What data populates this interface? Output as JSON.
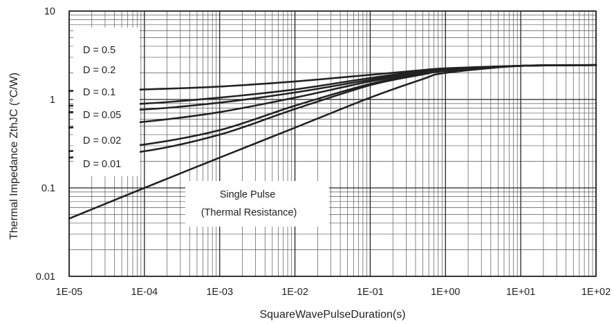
{
  "chart_data": {
    "type": "line",
    "title": "",
    "xlabel": "SquareWavePulseDuration(s)",
    "ylabel": "Thermal Impedance ZthJC (°C/W)",
    "x_scale": "log",
    "y_scale": "log",
    "xlim": [
      1e-05,
      100
    ],
    "ylim": [
      0.01,
      10
    ],
    "grid": true,
    "x_ticks": [
      1e-05,
      0.0001,
      0.001,
      0.01,
      0.1,
      1,
      10,
      100
    ],
    "x_tick_labels": [
      "1E-05",
      "1E-04",
      "1E-03",
      "1E-02",
      "1E-01",
      "1E+00",
      "1E+01",
      "1E+02"
    ],
    "y_ticks": [
      0.01,
      0.1,
      1,
      10
    ],
    "y_tick_labels": [
      "0.01",
      "0.1",
      "1",
      "10"
    ],
    "series": [
      {
        "name": "D = 0.5",
        "x": [
          1e-05,
          0.0001,
          0.001,
          0.01,
          0.1,
          0.5,
          1,
          10,
          100
        ],
        "y": [
          1.25,
          1.3,
          1.4,
          1.6,
          1.9,
          2.15,
          2.25,
          2.4,
          2.45
        ]
      },
      {
        "name": "D = 0.2",
        "x": [
          1e-05,
          0.0001,
          0.001,
          0.01,
          0.1,
          0.5,
          1,
          10,
          100
        ],
        "y": [
          0.85,
          0.9,
          1.05,
          1.3,
          1.75,
          2.1,
          2.2,
          2.4,
          2.45
        ]
      },
      {
        "name": "D = 0.1",
        "x": [
          1e-05,
          0.0001,
          0.001,
          0.01,
          0.1,
          0.5,
          1,
          10,
          100
        ],
        "y": [
          0.72,
          0.77,
          0.92,
          1.2,
          1.67,
          2.05,
          2.18,
          2.4,
          2.45
        ]
      },
      {
        "name": "D = 0.05",
        "x": [
          1e-05,
          0.0001,
          0.001,
          0.01,
          0.1,
          0.5,
          1,
          10,
          100
        ],
        "y": [
          0.48,
          0.56,
          0.72,
          1.05,
          1.6,
          2.0,
          2.15,
          2.4,
          2.45
        ]
      },
      {
        "name": "D = 0.02",
        "x": [
          1e-05,
          0.0001,
          0.001,
          0.01,
          0.1,
          0.5,
          1,
          10,
          100
        ],
        "y": [
          0.26,
          0.31,
          0.45,
          0.85,
          1.5,
          1.95,
          2.12,
          2.4,
          2.45
        ]
      },
      {
        "name": "D = 0.01",
        "x": [
          1e-05,
          0.0001,
          0.001,
          0.01,
          0.1,
          0.5,
          1,
          10,
          100
        ],
        "y": [
          0.22,
          0.26,
          0.4,
          0.78,
          1.45,
          1.92,
          2.1,
          2.4,
          2.45
        ]
      },
      {
        "name": "Single Pulse",
        "x": [
          1e-05,
          0.0001,
          0.001,
          0.01,
          0.1,
          0.5,
          1,
          10,
          100
        ],
        "y": [
          0.045,
          0.1,
          0.22,
          0.48,
          1.05,
          1.7,
          2.0,
          2.4,
          2.45
        ]
      }
    ],
    "annotations": [
      {
        "text": "D = 0.5"
      },
      {
        "text": "D = 0.2"
      },
      {
        "text": "D = 0.1"
      },
      {
        "text": "D = 0.05"
      },
      {
        "text": "D = 0.02"
      },
      {
        "text": "D = 0.01"
      },
      {
        "text": "Single Pulse"
      },
      {
        "text": "(Thermal Resistance)"
      }
    ],
    "line_color": "#222222"
  }
}
